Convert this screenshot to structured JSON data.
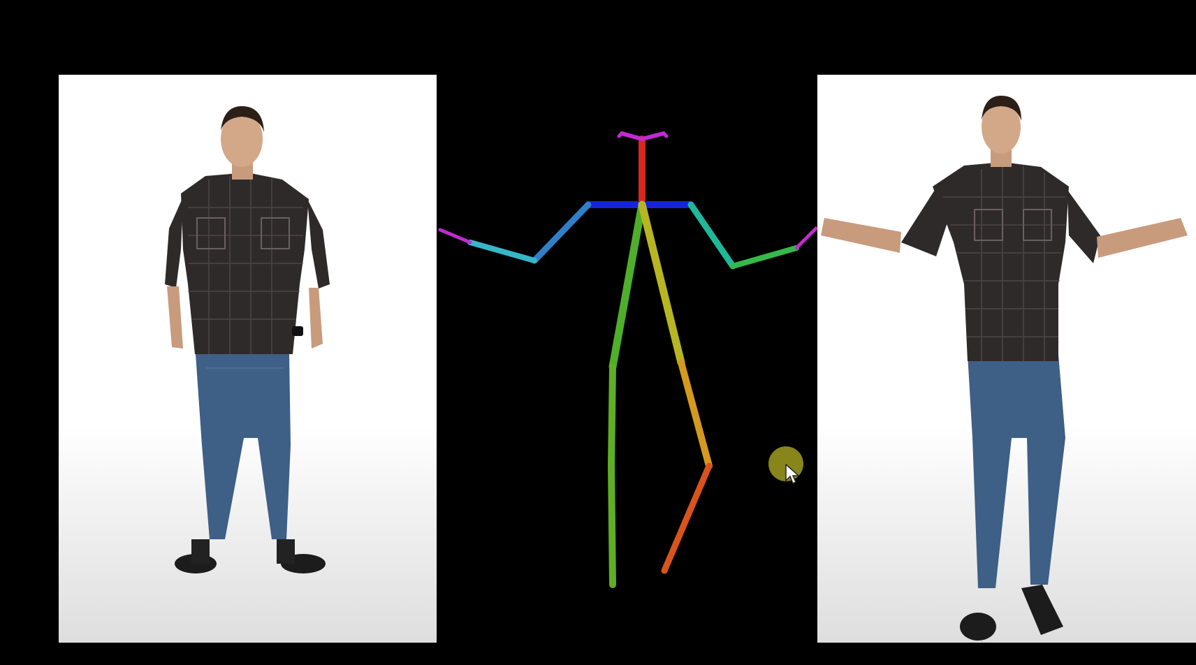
{
  "video_frame": {
    "panels": [
      {
        "id": "reference",
        "content": "person-photo"
      },
      {
        "id": "pose",
        "content": "pose-skeleton"
      },
      {
        "id": "generated",
        "content": "person-photo"
      }
    ],
    "skeleton_colors": {
      "head": "#d8281c",
      "face": "#c02bd0",
      "shoulders": "#1723d8",
      "right_upper_arm": "#2f7fc9",
      "right_forearm": "#37b6c8",
      "left_upper_arm": "#1fb89a",
      "left_forearm": "#36b84a",
      "right_thigh": "#4fae2a",
      "right_shin": "#5fae25",
      "left_thigh": "#b7b622",
      "left_shin_upper": "#d39a1f",
      "left_shin_lower": "#d8541c"
    },
    "cursor": {
      "icon": "mouse-pointer-icon",
      "highlight_color": "#8f8c1c"
    }
  }
}
